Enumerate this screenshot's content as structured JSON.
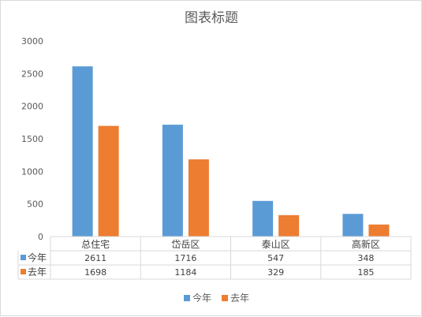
{
  "chart_data": {
    "type": "bar",
    "title": "图表标题",
    "categories": [
      "总住宅",
      "岱岳区",
      "泰山区",
      "高新区"
    ],
    "series": [
      {
        "name": "今年",
        "values": [
          2611,
          1716,
          547,
          348
        ],
        "color": "#5b9bd5"
      },
      {
        "name": "去年",
        "values": [
          1698,
          1184,
          329,
          185
        ],
        "color": "#ed7d31"
      }
    ],
    "ylim": [
      0,
      3000
    ],
    "yticks": [
      0,
      500,
      1000,
      1500,
      2000,
      2500,
      3000
    ],
    "grid": false,
    "legend": "bottom",
    "data_table": true
  }
}
